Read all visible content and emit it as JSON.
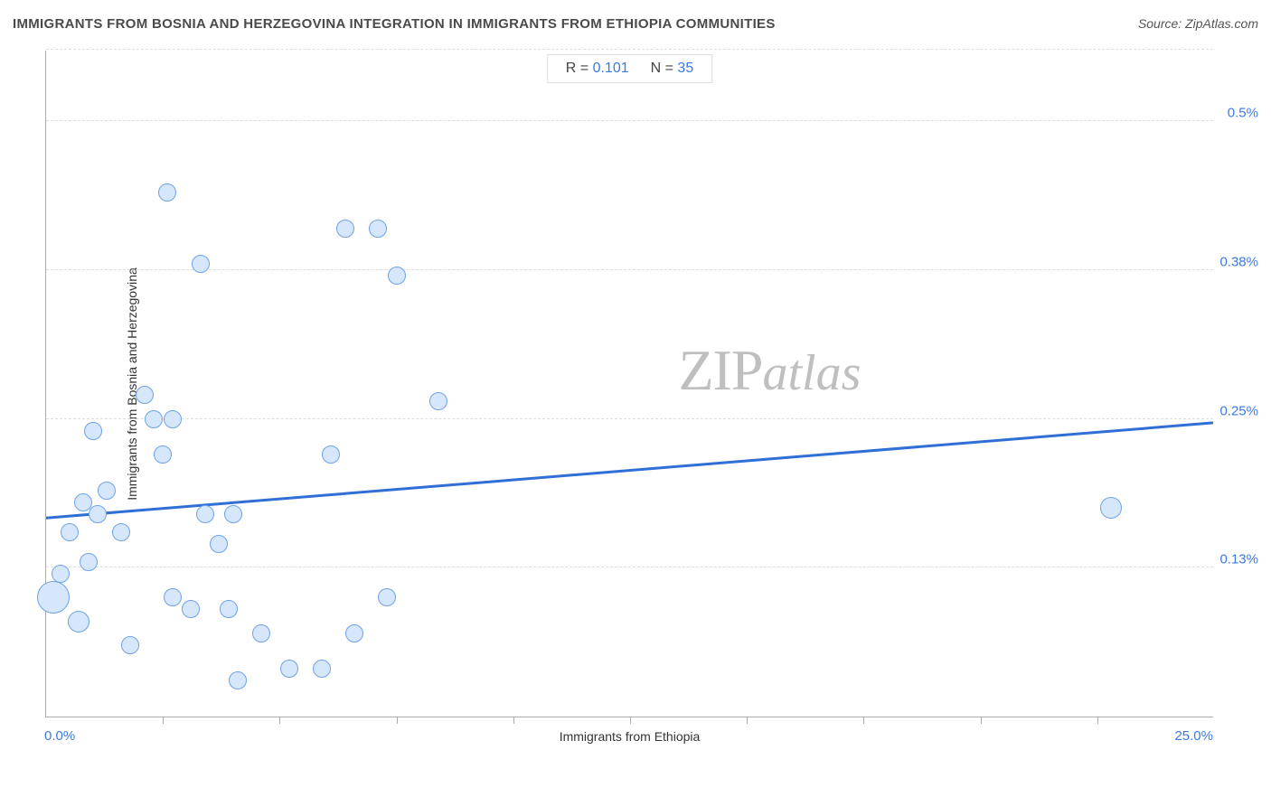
{
  "title": "IMMIGRANTS FROM BOSNIA AND HERZEGOVINA INTEGRATION IN IMMIGRANTS FROM ETHIOPIA COMMUNITIES",
  "source_label": "Source: ZipAtlas.com",
  "watermark": {
    "left": "ZIP",
    "right": "atlas"
  },
  "stats": {
    "r_label": "R = ",
    "r_value": "0.101",
    "n_label": "N = ",
    "n_value": "35"
  },
  "chart": {
    "type": "scatter",
    "xlabel": "Immigrants from Ethiopia",
    "ylabel": "Immigrants from Bosnia and Herzegovina",
    "xmin_label": "0.0%",
    "xmax_label": "25.0%",
    "xlim": [
      0,
      25
    ],
    "ylim": [
      0,
      0.56
    ],
    "x_ticks": [
      2.5,
      5,
      7.5,
      10,
      12.5,
      15,
      17.5,
      20,
      22.5
    ],
    "y_gridlines": [
      {
        "value": 0.125,
        "label": "0.13%"
      },
      {
        "value": 0.25,
        "label": "0.25%"
      },
      {
        "value": 0.375,
        "label": "0.38%"
      },
      {
        "value": 0.5,
        "label": "0.5%"
      },
      {
        "value": 0.56,
        "label": ""
      }
    ],
    "grid_color": "#dddddd",
    "axis_color": "#aaaaaa",
    "background_color": "#ffffff",
    "point_fill": "#d6e6fb",
    "point_stroke": "#6fa3e8",
    "point_radius_default": 10,
    "trendline": {
      "color": "#2f6fd6",
      "width": 3,
      "y_at_xmin": 0.167,
      "y_at_xmax": 0.247
    },
    "points": [
      {
        "x": 0.15,
        "y": 0.1,
        "r": 18
      },
      {
        "x": 0.3,
        "y": 0.12,
        "r": 10
      },
      {
        "x": 0.7,
        "y": 0.08,
        "r": 12
      },
      {
        "x": 0.5,
        "y": 0.155,
        "r": 10
      },
      {
        "x": 0.9,
        "y": 0.13,
        "r": 10
      },
      {
        "x": 1.0,
        "y": 0.24,
        "r": 10
      },
      {
        "x": 0.8,
        "y": 0.18,
        "r": 10
      },
      {
        "x": 1.1,
        "y": 0.17,
        "r": 10
      },
      {
        "x": 1.3,
        "y": 0.19,
        "r": 10
      },
      {
        "x": 1.6,
        "y": 0.155,
        "r": 10
      },
      {
        "x": 1.8,
        "y": 0.06,
        "r": 10
      },
      {
        "x": 2.1,
        "y": 0.27,
        "r": 10
      },
      {
        "x": 2.3,
        "y": 0.25,
        "r": 10
      },
      {
        "x": 2.5,
        "y": 0.22,
        "r": 10
      },
      {
        "x": 2.6,
        "y": 0.44,
        "r": 10
      },
      {
        "x": 2.7,
        "y": 0.25,
        "r": 10
      },
      {
        "x": 2.7,
        "y": 0.1,
        "r": 10
      },
      {
        "x": 3.1,
        "y": 0.09,
        "r": 10
      },
      {
        "x": 3.3,
        "y": 0.38,
        "r": 10
      },
      {
        "x": 3.4,
        "y": 0.17,
        "r": 10
      },
      {
        "x": 3.7,
        "y": 0.145,
        "r": 10
      },
      {
        "x": 3.9,
        "y": 0.09,
        "r": 10
      },
      {
        "x": 4.0,
        "y": 0.17,
        "r": 10
      },
      {
        "x": 4.1,
        "y": 0.03,
        "r": 10
      },
      {
        "x": 4.6,
        "y": 0.07,
        "r": 10
      },
      {
        "x": 5.2,
        "y": 0.04,
        "r": 10
      },
      {
        "x": 5.9,
        "y": 0.04,
        "r": 10
      },
      {
        "x": 6.1,
        "y": 0.22,
        "r": 10
      },
      {
        "x": 6.4,
        "y": 0.41,
        "r": 10
      },
      {
        "x": 6.6,
        "y": 0.07,
        "r": 10
      },
      {
        "x": 7.1,
        "y": 0.41,
        "r": 10
      },
      {
        "x": 7.3,
        "y": 0.1,
        "r": 10
      },
      {
        "x": 7.5,
        "y": 0.37,
        "r": 10
      },
      {
        "x": 8.4,
        "y": 0.265,
        "r": 10
      },
      {
        "x": 22.8,
        "y": 0.175,
        "r": 12
      }
    ]
  }
}
